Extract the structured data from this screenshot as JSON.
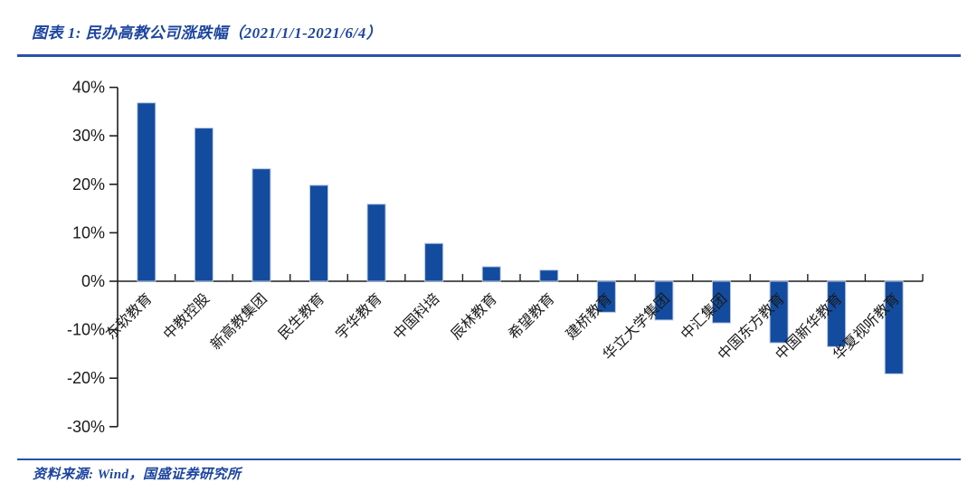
{
  "figure": {
    "title": "图表 1: 民办高教公司涨跌幅（2021/1/1-2021/6/4）",
    "source": "资料来源: Wind，国盛证券研究所"
  },
  "colors": {
    "accent_blue": "#1C44A0",
    "rule_blue": "#2653A8",
    "bar_blue": "#134C9E",
    "bar_border": "#B7C5E4",
    "axis_black": "#1F1F1F",
    "label_black": "#1A1A1A"
  },
  "chart_data": {
    "type": "bar",
    "title": "民办高教公司涨跌幅（2021/1/1-2021/6/4）",
    "categories": [
      "东软教育",
      "中教控股",
      "新高教集团",
      "民生教育",
      "宇华教育",
      "中国科培",
      "辰林教育",
      "希望教育",
      "建桥教育",
      "华立大学集团",
      "中汇集团",
      "中国东方教育",
      "中国新华教育",
      "华夏视听教育"
    ],
    "values": [
      36.8,
      31.6,
      23.2,
      19.8,
      15.9,
      7.8,
      3.0,
      2.3,
      -6.4,
      -8.0,
      -8.6,
      -12.7,
      -13.5,
      -19.1
    ],
    "unit": "%",
    "xlabel": "",
    "ylabel": "",
    "ylim": [
      -30,
      40
    ],
    "ytick_step": 10,
    "ytick_labels": [
      "40%",
      "30%",
      "20%",
      "10%",
      "0%",
      "-10%",
      "-20%",
      "-30%"
    ],
    "grid": false,
    "legend_position": "none",
    "bar_color": "#134C9E",
    "bar_border_color": "#B7C5E4",
    "x_label_rotation_deg": -45
  }
}
